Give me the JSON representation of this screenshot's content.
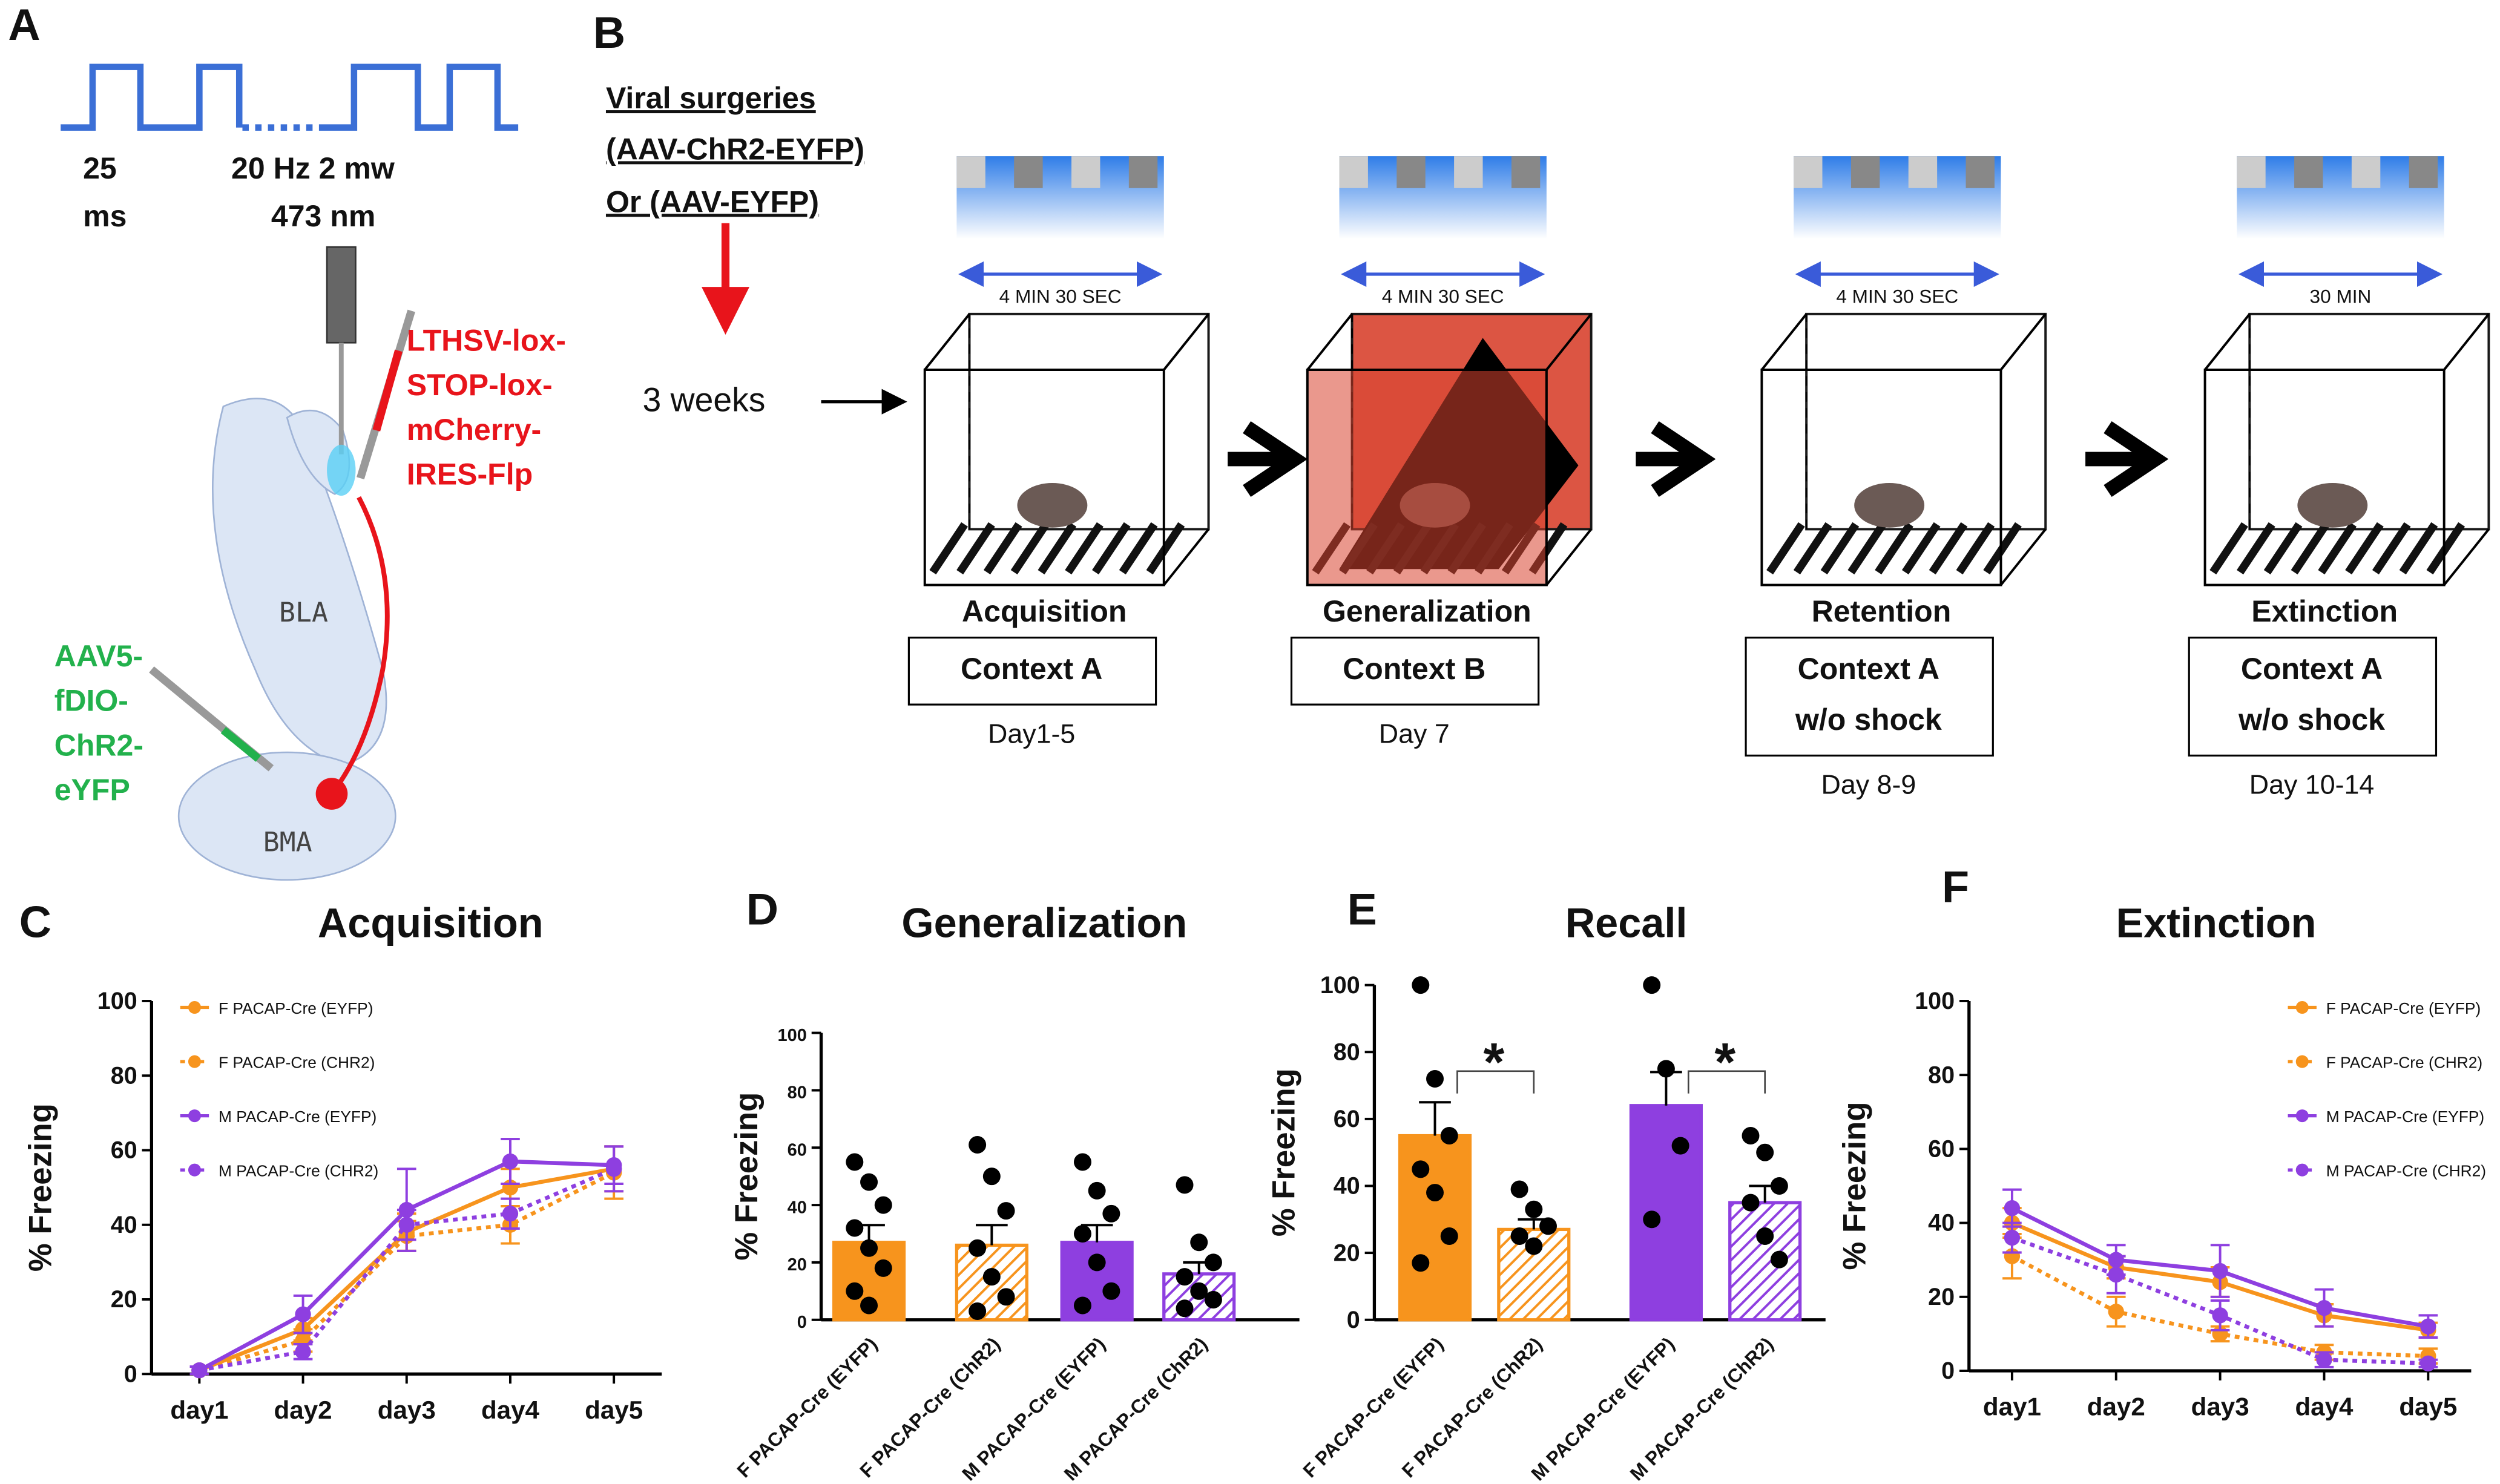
{
  "panel_labels": [
    "A",
    "B",
    "C",
    "D",
    "E",
    "F"
  ],
  "panel_a": {
    "pulse_width": [
      "25",
      "ms"
    ],
    "stimulation": [
      "20 Hz 2 mw",
      "473 nm"
    ],
    "virus_red": [
      "LTHSV-lox-",
      "STOP-lox-",
      "mCherry-",
      "IRES-Flp"
    ],
    "virus_green": [
      "AAV5-",
      "fDIO-",
      "ChR2-",
      "eYFP"
    ],
    "regions": [
      "BLA",
      "BMA"
    ]
  },
  "panel_b": {
    "surgery": [
      "Viral surgeries",
      "(AAV-ChR2-EYFP)",
      "Or (AAV-EYFP)"
    ],
    "delay": "3 weeks",
    "stages": [
      {
        "duration": "4 MIN 30 SEC",
        "name": "Acquisition",
        "context": [
          "Context A"
        ],
        "days": "Day1-5"
      },
      {
        "duration": "4 MIN 30 SEC",
        "name": "Generalization",
        "context": [
          "Context B"
        ],
        "days": "Day 7"
      },
      {
        "duration": "4 MIN 30 SEC",
        "name": "Retention",
        "context": [
          "Context A",
          "w/o shock"
        ],
        "days": "Day 8-9"
      },
      {
        "duration": "30 MIN",
        "name": "Extinction",
        "context": [
          "Context A",
          "w/o shock"
        ],
        "days": "Day 10-14"
      }
    ]
  },
  "chart_data": [
    {
      "type": "line",
      "title": "Acquisition",
      "y_label": "% Freezing",
      "categories": [
        "day1",
        "day2",
        "day3",
        "day4",
        "day5"
      ],
      "ylim": [
        0,
        100
      ],
      "yticks": [
        0,
        20,
        40,
        60,
        80,
        100
      ],
      "legend": "upper left",
      "series": [
        {
          "name": "F PACAP-Cre (EYFP)",
          "color": "#f7941d",
          "linestyle": "solid",
          "values": [
            1,
            12,
            38,
            50,
            55
          ],
          "errors": [
            1,
            3,
            5,
            5,
            6
          ]
        },
        {
          "name": "F PACAP-Cre (CHR2)",
          "color": "#f7941d",
          "linestyle": "dotted",
          "values": [
            1,
            9,
            37,
            40,
            54
          ],
          "errors": [
            1,
            3,
            4,
            5,
            7
          ]
        },
        {
          "name": "M PACAP-Cre (EYFP)",
          "color": "#8e3fe0",
          "linestyle": "solid",
          "values": [
            1,
            16,
            44,
            57,
            56
          ],
          "errors": [
            1,
            5,
            11,
            6,
            5
          ]
        },
        {
          "name": "M PACAP-Cre (CHR2)",
          "color": "#8e3fe0",
          "linestyle": "dotted",
          "values": [
            1,
            6,
            40,
            43,
            55
          ],
          "errors": [
            1,
            2,
            4,
            4,
            6
          ]
        }
      ]
    },
    {
      "type": "bar",
      "title": "Generalization",
      "y_label": "% Freezing",
      "categories": [
        "F PACAP-Cre (EYFP)",
        "F PACAP-Cre (ChR2)",
        "M PACAP-Cre (EYFP)",
        "M PACAP-Cre (ChR2)"
      ],
      "values": [
        27,
        26,
        27,
        16
      ],
      "errors": [
        6,
        7,
        6,
        4
      ],
      "colors": [
        "#f7941d",
        "#f7941d",
        "#8e3fe0",
        "#8e3fe0"
      ],
      "hatched": [
        false,
        true,
        false,
        true
      ],
      "points": [
        [
          55,
          48,
          40,
          32,
          25,
          18,
          10,
          5
        ],
        [
          61,
          50,
          38,
          25,
          15,
          8,
          3
        ],
        [
          55,
          45,
          37,
          30,
          20,
          10,
          5
        ],
        [
          47,
          27,
          20,
          15,
          10,
          7,
          4
        ]
      ],
      "ylim": [
        0,
        100
      ],
      "yticks": [
        0,
        20,
        40,
        60,
        80,
        100
      ]
    },
    {
      "type": "bar",
      "title": "Recall",
      "y_label": "% Freezing",
      "categories": [
        "F PACAP-Cre (EYFP)",
        "F PACAP-Cre (ChR2)",
        "M PACAP-Cre (EYFP)",
        "M PACAP-Cre (ChR2)"
      ],
      "values": [
        55,
        27,
        64,
        35
      ],
      "errors": [
        10,
        3,
        10,
        5
      ],
      "colors": [
        "#f7941d",
        "#f7941d",
        "#8e3fe0",
        "#8e3fe0"
      ],
      "hatched": [
        false,
        true,
        false,
        true
      ],
      "points": [
        [
          100,
          72,
          55,
          45,
          38,
          25,
          17
        ],
        [
          39,
          33,
          28,
          25,
          22
        ],
        [
          100,
          75,
          52,
          30
        ],
        [
          55,
          50,
          40,
          35,
          25,
          18
        ]
      ],
      "annotations": [
        "*",
        "*"
      ],
      "ylim": [
        0,
        100
      ],
      "yticks": [
        0,
        20,
        40,
        60,
        80,
        100
      ]
    },
    {
      "type": "line",
      "title": "Extinction",
      "y_label": "% Freezing",
      "categories": [
        "day1",
        "day2",
        "day3",
        "day4",
        "day5"
      ],
      "ylim": [
        0,
        100
      ],
      "yticks": [
        0,
        20,
        40,
        60,
        80,
        100
      ],
      "legend": "upper right",
      "series": [
        {
          "name": "F PACAP-Cre (EYFP)",
          "color": "#f7941d",
          "linestyle": "solid",
          "values": [
            40,
            28,
            24,
            15,
            11
          ],
          "errors": [
            4,
            3,
            4,
            3,
            2
          ]
        },
        {
          "name": "F PACAP-Cre (CHR2)",
          "color": "#f7941d",
          "linestyle": "dotted",
          "values": [
            31,
            16,
            10,
            5,
            4
          ],
          "errors": [
            6,
            4,
            2,
            2,
            2
          ]
        },
        {
          "name": "M PACAP-Cre (EYFP)",
          "color": "#8e3fe0",
          "linestyle": "solid",
          "values": [
            44,
            30,
            27,
            17,
            12
          ],
          "errors": [
            5,
            4,
            7,
            5,
            3
          ]
        },
        {
          "name": "M PACAP-Cre (CHR2)",
          "color": "#8e3fe0",
          "linestyle": "dotted",
          "values": [
            36,
            26,
            15,
            3,
            2
          ],
          "errors": [
            4,
            5,
            4,
            2,
            1
          ]
        }
      ]
    }
  ]
}
